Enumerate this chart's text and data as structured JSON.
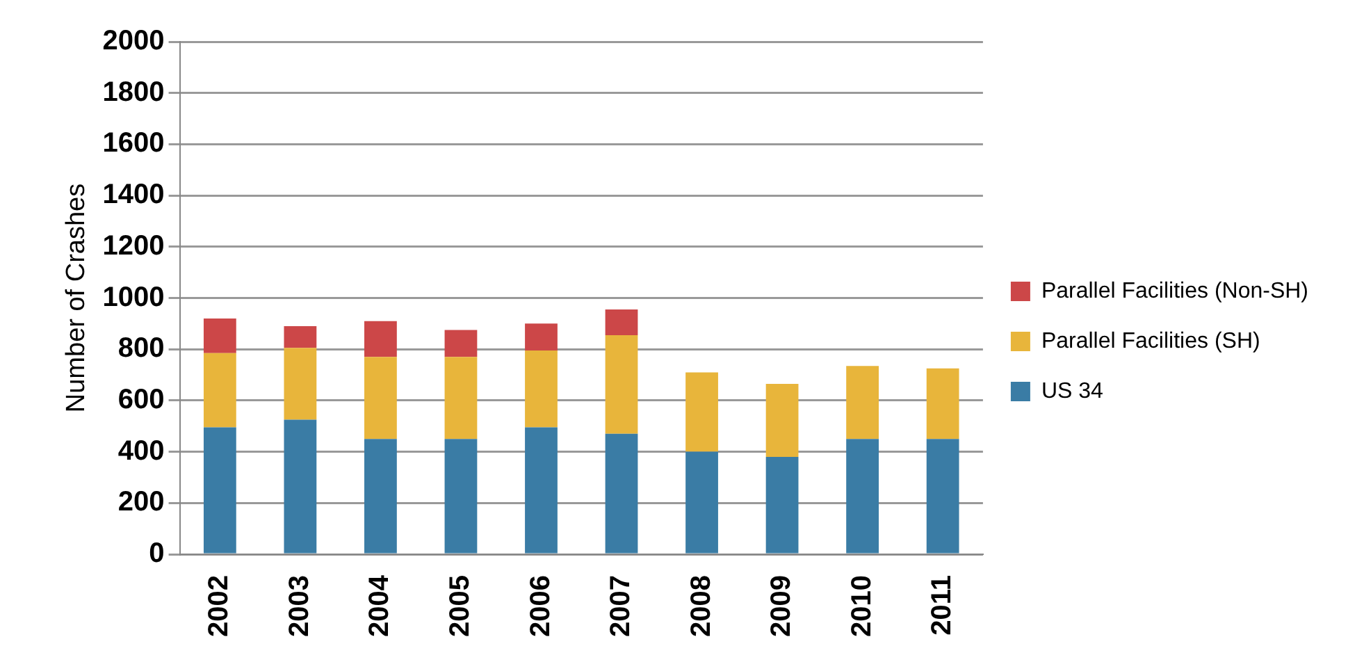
{
  "chart_data": {
    "type": "bar",
    "ylabel": "Number of Crashes",
    "categories": [
      "2002",
      "2003",
      "2004",
      "2005",
      "2006",
      "2007",
      "2008",
      "2009",
      "2010",
      "2011"
    ],
    "stacked": true,
    "ylim": [
      0,
      2000
    ],
    "yticks": [
      0,
      200,
      400,
      600,
      800,
      1000,
      1200,
      1400,
      1600,
      1800,
      2000
    ],
    "grid": "y",
    "legend": "right",
    "series": [
      {
        "name": "US 34",
        "color": "#3a7ca5",
        "values": [
          495,
          525,
          450,
          450,
          495,
          470,
          400,
          380,
          450,
          450
        ]
      },
      {
        "name": "Parallel Facilities (SH)",
        "color": "#e8b53b",
        "values": [
          290,
          280,
          320,
          320,
          300,
          385,
          310,
          285,
          285,
          275
        ]
      },
      {
        "name": "Parallel Facilities (Non-SH)",
        "color": "#cc4748",
        "values": [
          135,
          85,
          140,
          105,
          105,
          100,
          null,
          null,
          null,
          null
        ]
      }
    ]
  }
}
